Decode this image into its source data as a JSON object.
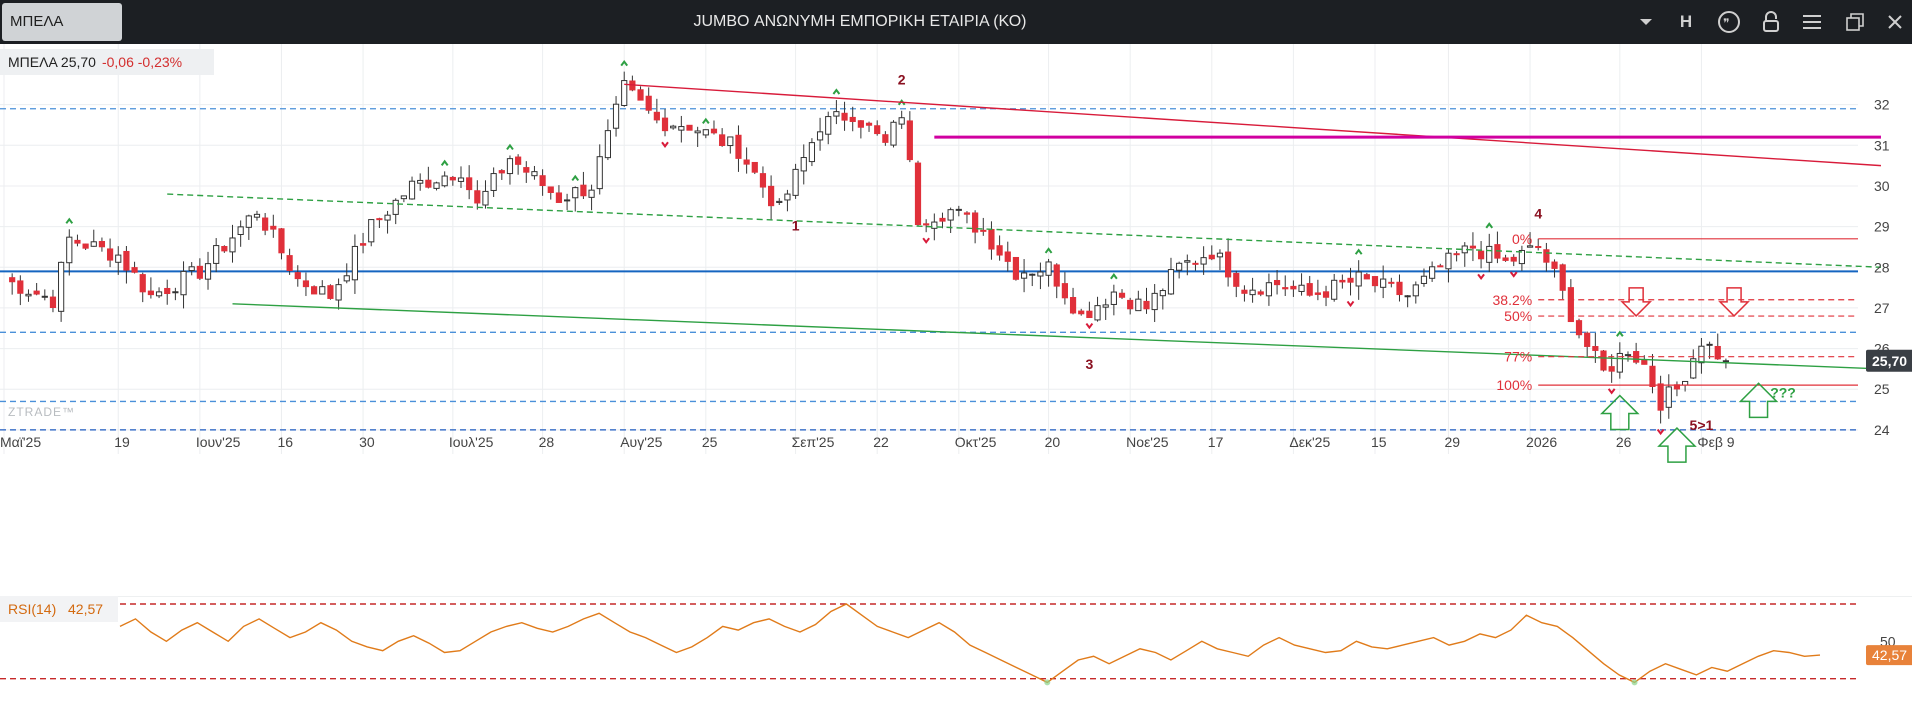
{
  "window": {
    "symbol_tab": "ΜΠΕΛΑ",
    "title": "JUMBO ΑΝΩΝΥΜΗ ΕΜΠΟΡΙΚΗ ΕΤΑΙΡΙΑ (ΚΟ)",
    "h_button": "H",
    "icons": [
      "chevron-down-icon",
      "quote-icon",
      "lock-icon",
      "menu-icon",
      "restore-icon",
      "close-icon"
    ]
  },
  "quote": {
    "symbol_price": "ΜΠΕΛΑ 25,70",
    "change": "-0,06 -0,23%"
  },
  "watermark": "ZTRADE™",
  "colors": {
    "up": "#ffffff",
    "down": "#e0303a",
    "support": "#1565c0",
    "trend_red": "#d81b3a",
    "trend_green": "#2ea043",
    "magenta": "#d000a0",
    "fib": "#e0303a",
    "rsi_line": "#e07b1a",
    "price_tag": "#3a3f45",
    "rsi_tag": "#e8823a"
  },
  "chart_data": [
    {
      "type": "candlestick",
      "y_axis": {
        "range": [
          23.8,
          33.0
        ],
        "ticks": [
          24,
          25,
          26,
          27,
          28,
          29,
          30,
          31,
          32
        ],
        "tick_labels": [
          "24",
          "25",
          "26",
          "27",
          "28",
          "29",
          "30",
          "31",
          "32"
        ]
      },
      "x_axis": {
        "labels": [
          "Μαϊ'25",
          "19",
          "Ιουν'25",
          "16",
          "30",
          "Ιουλ'25",
          "28",
          "Αυγ'25",
          "25",
          "Σεπ'25",
          "22",
          "Οκτ'25",
          "20",
          "Νοε'25",
          "17",
          "Δεκ'25",
          "15",
          "29",
          "2026",
          "26",
          "Φεβ 9"
        ],
        "label_index": [
          0,
          14,
          24,
          34,
          44,
          55,
          66,
          76,
          86,
          97,
          107,
          117,
          128,
          138,
          148,
          158,
          168,
          177,
          187,
          198,
          208
        ]
      },
      "last_price_label": "25,70",
      "key_points": [
        {
          "i": 0,
          "v": 27.7
        },
        {
          "i": 6,
          "v": 27.2
        },
        {
          "i": 8,
          "v": 28.7
        },
        {
          "i": 14,
          "v": 28.3
        },
        {
          "i": 18,
          "v": 27.3
        },
        {
          "i": 24,
          "v": 27.9
        },
        {
          "i": 31,
          "v": 29.4
        },
        {
          "i": 36,
          "v": 27.7
        },
        {
          "i": 40,
          "v": 27.3
        },
        {
          "i": 45,
          "v": 29.0
        },
        {
          "i": 50,
          "v": 30.0
        },
        {
          "i": 56,
          "v": 30.4
        },
        {
          "i": 58,
          "v": 29.5
        },
        {
          "i": 62,
          "v": 30.7
        },
        {
          "i": 68,
          "v": 29.7
        },
        {
          "i": 72,
          "v": 30.0
        },
        {
          "i": 76,
          "v": 32.4
        },
        {
          "i": 80,
          "v": 31.6
        },
        {
          "i": 84,
          "v": 31.5
        },
        {
          "i": 90,
          "v": 30.9
        },
        {
          "i": 95,
          "v": 29.4
        },
        {
          "i": 100,
          "v": 31.5
        },
        {
          "i": 104,
          "v": 31.8
        },
        {
          "i": 108,
          "v": 31.0
        },
        {
          "i": 110,
          "v": 31.8
        },
        {
          "i": 112,
          "v": 29.2
        },
        {
          "i": 116,
          "v": 29.4
        },
        {
          "i": 120,
          "v": 28.9
        },
        {
          "i": 124,
          "v": 27.9
        },
        {
          "i": 128,
          "v": 28.0
        },
        {
          "i": 132,
          "v": 26.8
        },
        {
          "i": 136,
          "v": 27.4
        },
        {
          "i": 140,
          "v": 27.0
        },
        {
          "i": 144,
          "v": 28.0
        },
        {
          "i": 148,
          "v": 28.4
        },
        {
          "i": 152,
          "v": 27.5
        },
        {
          "i": 156,
          "v": 27.6
        },
        {
          "i": 160,
          "v": 27.3
        },
        {
          "i": 166,
          "v": 27.7
        },
        {
          "i": 172,
          "v": 27.3
        },
        {
          "i": 176,
          "v": 28.0
        },
        {
          "i": 180,
          "v": 28.5
        },
        {
          "i": 184,
          "v": 28.1
        },
        {
          "i": 188,
          "v": 28.5
        },
        {
          "i": 190,
          "v": 27.8
        },
        {
          "i": 193,
          "v": 26.4
        },
        {
          "i": 196,
          "v": 25.4
        },
        {
          "i": 199,
          "v": 26.0
        },
        {
          "i": 201,
          "v": 25.6
        },
        {
          "i": 203,
          "v": 24.7
        },
        {
          "i": 205,
          "v": 25.0
        },
        {
          "i": 208,
          "v": 26.2
        },
        {
          "i": 211,
          "v": 25.7
        }
      ],
      "horizontal_lines": [
        {
          "value": 31.9,
          "style": "dashed",
          "color": "#4a90d9"
        },
        {
          "value": 27.9,
          "style": "solid",
          "color": "#1565c0"
        },
        {
          "value": 26.4,
          "style": "dashed",
          "color": "#4a90d9"
        },
        {
          "value": 24.7,
          "style": "dashed",
          "color": "#4a90d9"
        },
        {
          "value": 24.0,
          "style": "dashed",
          "color": "#1e5bbf"
        }
      ],
      "trendlines": [
        {
          "from": [
            76,
            32.5
          ],
          "to": [
            230,
            30.5
          ],
          "color": "#d81b3a"
        },
        {
          "from": [
            20,
            29.8
          ],
          "to": [
            230,
            28.0
          ],
          "color": "#2ea043",
          "style": "dashed"
        },
        {
          "from": [
            28,
            27.1
          ],
          "to": [
            230,
            25.5
          ],
          "color": "#2ea043"
        },
        {
          "from": [
            114,
            31.2
          ],
          "to": [
            230,
            31.2
          ],
          "color": "#d000a0"
        }
      ],
      "fibonacci": {
        "levels": [
          {
            "label": "0%",
            "value": 28.7
          },
          {
            "label": "38.2%",
            "value": 27.2
          },
          {
            "label": "50%",
            "value": 26.8
          },
          {
            "label": "77%",
            "value": 25.8
          },
          {
            "label": "100%",
            "value": 25.1
          }
        ],
        "start_index": 188
      },
      "wave_labels": [
        {
          "text": "1",
          "i": 97,
          "v": 28.9,
          "color": "#8a1020"
        },
        {
          "text": "2",
          "i": 110,
          "v": 32.5,
          "color": "#8a1020"
        },
        {
          "text": "3",
          "i": 133,
          "v": 25.5,
          "color": "#8a1020"
        },
        {
          "text": "4",
          "i": 188,
          "v": 29.2,
          "color": "#8a1020"
        },
        {
          "text": "5>1",
          "i": 208,
          "v": 24.0,
          "color": "#8a1020"
        },
        {
          "text": "???",
          "i": 218,
          "v": 24.8,
          "color": "#2ea043"
        }
      ],
      "arrows": [
        {
          "dir": "down",
          "i": 200,
          "v": 27.0,
          "color": "#e0303a"
        },
        {
          "dir": "down",
          "i": 212,
          "v": 27.0,
          "color": "#e0303a"
        },
        {
          "dir": "up",
          "i": 198,
          "v": 24.5,
          "color": "#2ea043"
        },
        {
          "dir": "up",
          "i": 205,
          "v": 23.7,
          "color": "#2ea043"
        },
        {
          "dir": "up",
          "i": 215,
          "v": 24.8,
          "color": "#2ea043"
        }
      ]
    },
    {
      "type": "line",
      "name": "RSI(14)",
      "label": "RSI(14)",
      "last_value": "42,57",
      "y_axis": {
        "range": [
          25,
          70
        ],
        "ticks": [
          50
        ],
        "tick_labels": [
          "50"
        ]
      },
      "levels": [
        70,
        30
      ],
      "values": [
        58,
        62,
        55,
        50,
        56,
        60,
        55,
        50,
        58,
        62,
        57,
        52,
        55,
        60,
        56,
        50,
        47,
        45,
        50,
        53,
        49,
        44,
        45,
        50,
        55,
        58,
        60,
        57,
        55,
        58,
        62,
        65,
        60,
        55,
        52,
        48,
        44,
        47,
        52,
        58,
        56,
        60,
        62,
        58,
        55,
        59,
        66,
        70,
        64,
        58,
        55,
        52,
        56,
        60,
        55,
        48,
        44,
        40,
        36,
        32,
        28,
        34,
        40,
        42,
        38,
        42,
        46,
        44,
        40,
        45,
        50,
        46,
        44,
        42,
        48,
        52,
        48,
        46,
        44,
        45,
        50,
        47,
        46,
        48,
        50,
        52,
        48,
        50,
        54,
        52,
        56,
        64,
        60,
        58,
        52,
        45,
        38,
        32,
        28,
        34,
        38,
        35,
        32,
        36,
        34,
        38,
        42,
        45,
        44,
        42,
        42.6
      ]
    }
  ]
}
